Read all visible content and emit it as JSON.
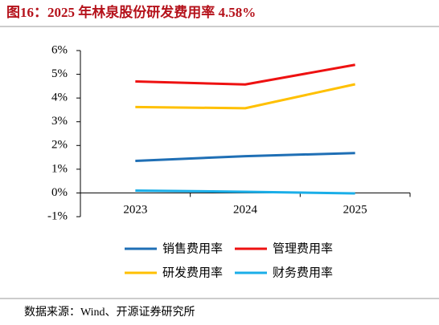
{
  "chart_data": {
    "type": "line",
    "title": "图16：2025 年林泉股份研发费用率 4.58%",
    "source": "数据来源：Wind、开源证券研究所",
    "categories": [
      "2023",
      "2024",
      "2025"
    ],
    "series": [
      {
        "name": "销售费用率",
        "color": "#1f6fb5",
        "values": [
          1.35,
          1.55,
          1.68
        ]
      },
      {
        "name": "管理费用率",
        "color": "#ee1111",
        "values": [
          4.7,
          4.57,
          5.4
        ]
      },
      {
        "name": "研发费用率",
        "color": "#ffc000",
        "values": [
          3.62,
          3.57,
          4.58
        ]
      },
      {
        "name": "财务费用率",
        "color": "#1aaee8",
        "values": [
          0.1,
          0.05,
          -0.02
        ]
      }
    ],
    "ylim": [
      -1,
      6
    ],
    "yticks": [
      {
        "value": -1,
        "label": "-1%"
      },
      {
        "value": 0,
        "label": "0%"
      },
      {
        "value": 1,
        "label": "1%"
      },
      {
        "value": 2,
        "label": "2%"
      },
      {
        "value": 3,
        "label": "3%"
      },
      {
        "value": 4,
        "label": "4%"
      },
      {
        "value": 5,
        "label": "5%"
      },
      {
        "value": 6,
        "label": "6%"
      }
    ],
    "grid": false
  }
}
